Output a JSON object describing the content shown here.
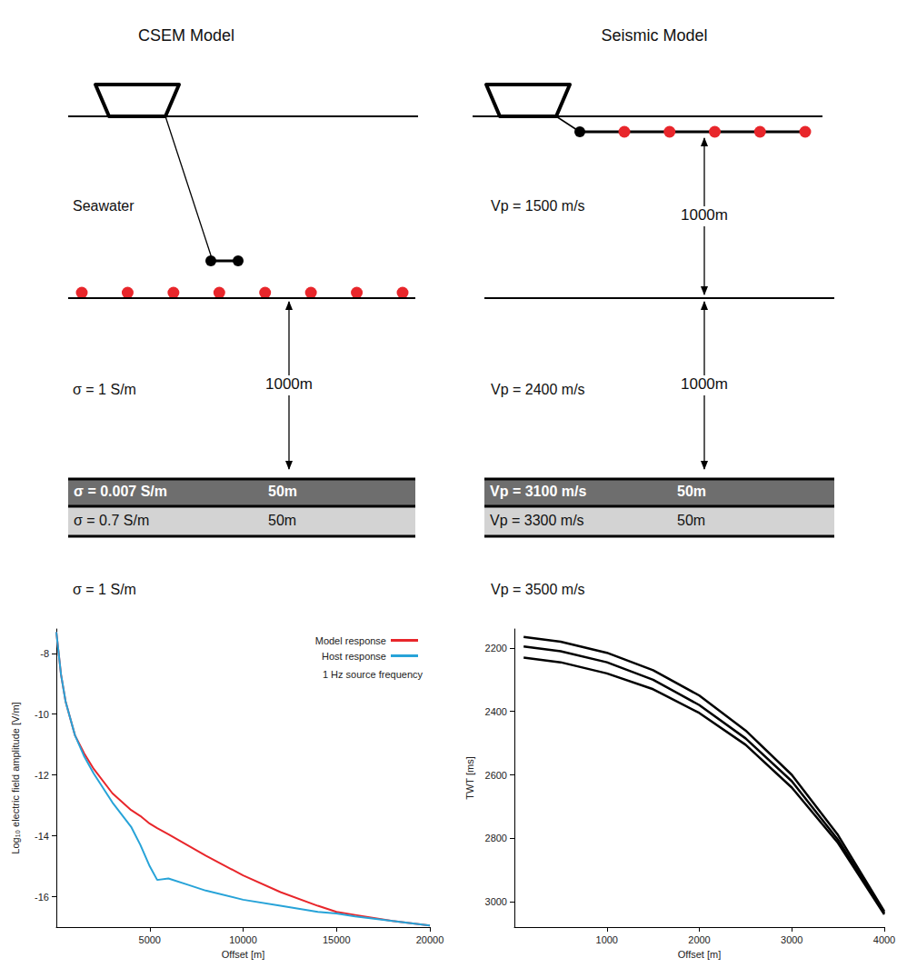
{
  "csem_model": {
    "title": "CSEM Model",
    "water_label": "Seawater",
    "receivers": 8,
    "overburden": "σ = 1 S/m",
    "overburden_thickness": "1000m",
    "layers": [
      {
        "label": "σ = 0.007 S/m",
        "thickness": "50m"
      },
      {
        "label": "σ = 0.7 S/m",
        "thickness": "50m"
      }
    ],
    "basement": "σ = 1 S/m"
  },
  "seismic_model": {
    "title": "Seismic Model",
    "water_label": "Vp = 1500 m/s",
    "water_thickness": "1000m",
    "receivers": 5,
    "overburden": "Vp = 2400 m/s",
    "overburden_thickness": "1000m",
    "layers": [
      {
        "label": "Vp = 3100 m/s",
        "thickness": "50m"
      },
      {
        "label": "Vp = 3300 m/s",
        "thickness": "50m"
      }
    ],
    "basement": "Vp = 3500 m/s"
  },
  "chart_data": [
    {
      "type": "line",
      "x_label": "Offset [m]",
      "y_label": "Log₁₀ electric field amplitude [V/m]",
      "annotation": "1 Hz source frequency",
      "x": [
        0,
        250,
        500,
        1000,
        1500,
        2000,
        3000,
        4000,
        4500,
        5000,
        5400,
        6000,
        7000,
        8000,
        10000,
        12000,
        14000,
        15000,
        16000,
        18000,
        20000
      ],
      "series": [
        {
          "name": "Model response",
          "color": "#e8262b",
          "values": [
            -7.3,
            -8.7,
            -9.6,
            -10.7,
            -11.3,
            -11.8,
            -12.6,
            -13.15,
            -13.35,
            -13.6,
            -13.75,
            -13.95,
            -14.3,
            -14.65,
            -15.3,
            -15.85,
            -16.3,
            -16.5,
            -16.6,
            -16.8,
            -16.95
          ]
        },
        {
          "name": "Host response",
          "color": "#27a3d8",
          "values": [
            -7.3,
            -8.7,
            -9.6,
            -10.7,
            -11.4,
            -11.95,
            -12.9,
            -13.7,
            -14.3,
            -15.0,
            -15.45,
            -15.4,
            -15.6,
            -15.8,
            -16.1,
            -16.3,
            -16.5,
            -16.55,
            -16.65,
            -16.8,
            -16.95
          ]
        }
      ],
      "xlim": [
        0,
        20000
      ],
      "xticks": [
        5000,
        10000,
        15000,
        20000
      ],
      "ylim": [
        -17,
        -7.2
      ],
      "yticks": [
        -16,
        -14,
        -12,
        -10,
        -8
      ],
      "legend": "upper right",
      "grid": false
    },
    {
      "type": "line",
      "x_label": "Offset [m]",
      "y_label": "TWT [ms]",
      "x": [
        100,
        500,
        1000,
        1500,
        2000,
        2500,
        3000,
        3500,
        4000
      ],
      "series": [
        {
          "color": "#000000",
          "values": [
            2165,
            2180,
            2215,
            2270,
            2350,
            2460,
            2600,
            2790,
            3030
          ]
        },
        {
          "color": "#000000",
          "values": [
            2195,
            2210,
            2245,
            2300,
            2380,
            2485,
            2620,
            2805,
            3035
          ]
        },
        {
          "color": "#000000",
          "values": [
            2230,
            2245,
            2280,
            2330,
            2405,
            2505,
            2640,
            2815,
            3040
          ]
        }
      ],
      "xlim": [
        0,
        4000
      ],
      "xticks": [
        1000,
        2000,
        3000,
        4000
      ],
      "ylim": [
        3080,
        2140
      ],
      "yticks": [
        2200,
        2400,
        2600,
        2800,
        3000
      ],
      "grid": false
    }
  ]
}
